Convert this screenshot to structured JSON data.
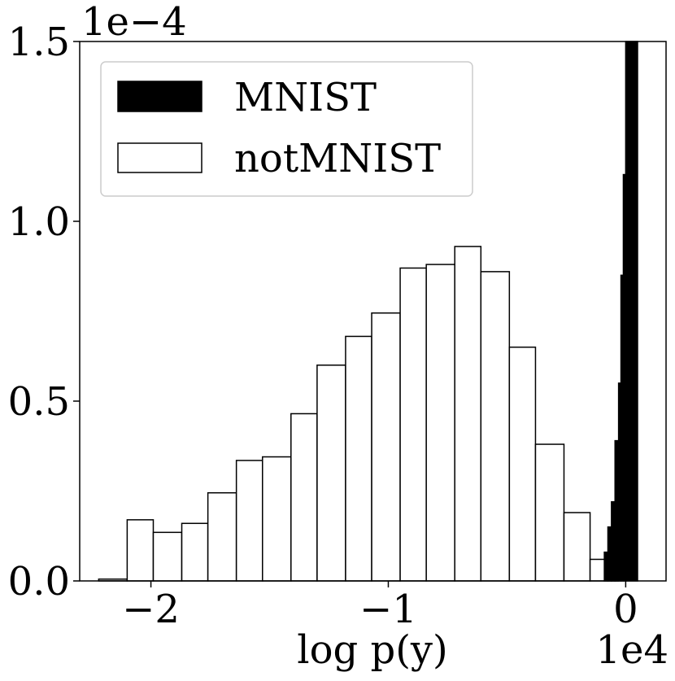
{
  "chart_data": {
    "type": "bar",
    "chart_kind": "histogram",
    "xlabel": "log p(y)",
    "ylabel": "",
    "x_scale_label": "1e4",
    "y_scale_label": "1e−4",
    "xlim": [
      -2.3,
      0.17
    ],
    "ylim": [
      0,
      1.5
    ],
    "x_ticks": [
      -2,
      -1,
      0
    ],
    "x_tick_labels": [
      "−2",
      "−1",
      "0"
    ],
    "y_ticks": [
      0.0,
      0.5,
      1.0,
      1.5
    ],
    "y_tick_labels": [
      "0.0",
      "0.5",
      "1.0",
      "1.5"
    ],
    "grid": false,
    "legend_position": "top-left",
    "colors": {
      "MNIST": "#000000",
      "notMNIST": "#ffffff",
      "edge": "#000000"
    },
    "series": [
      {
        "name": "notMNIST",
        "style": "outline",
        "bins": [
          {
            "x0": -2.22,
            "x1": -2.1,
            "y": 0.005
          },
          {
            "x0": -2.1,
            "x1": -1.99,
            "y": 0.17
          },
          {
            "x0": -1.99,
            "x1": -1.87,
            "y": 0.135
          },
          {
            "x0": -1.87,
            "x1": -1.76,
            "y": 0.16
          },
          {
            "x0": -1.76,
            "x1": -1.64,
            "y": 0.245
          },
          {
            "x0": -1.64,
            "x1": -1.53,
            "y": 0.335
          },
          {
            "x0": -1.53,
            "x1": -1.41,
            "y": 0.345
          },
          {
            "x0": -1.41,
            "x1": -1.3,
            "y": 0.465
          },
          {
            "x0": -1.3,
            "x1": -1.18,
            "y": 0.6
          },
          {
            "x0": -1.18,
            "x1": -1.07,
            "y": 0.68
          },
          {
            "x0": -1.07,
            "x1": -0.95,
            "y": 0.745
          },
          {
            "x0": -0.95,
            "x1": -0.84,
            "y": 0.87
          },
          {
            "x0": -0.84,
            "x1": -0.72,
            "y": 0.88
          },
          {
            "x0": -0.72,
            "x1": -0.61,
            "y": 0.93
          },
          {
            "x0": -0.61,
            "x1": -0.49,
            "y": 0.86
          },
          {
            "x0": -0.49,
            "x1": -0.38,
            "y": 0.65
          },
          {
            "x0": -0.38,
            "x1": -0.26,
            "y": 0.38
          },
          {
            "x0": -0.26,
            "x1": -0.15,
            "y": 0.19
          },
          {
            "x0": -0.15,
            "x1": -0.035,
            "y": 0.06
          }
        ]
      },
      {
        "name": "MNIST",
        "style": "filled",
        "bins": [
          {
            "x0": -0.09,
            "x1": -0.075,
            "y": 0.08
          },
          {
            "x0": -0.075,
            "x1": -0.06,
            "y": 0.15
          },
          {
            "x0": -0.06,
            "x1": -0.045,
            "y": 0.22
          },
          {
            "x0": -0.045,
            "x1": -0.03,
            "y": 0.39
          },
          {
            "x0": -0.03,
            "x1": -0.02,
            "y": 0.55
          },
          {
            "x0": -0.02,
            "x1": -0.01,
            "y": 0.85
          },
          {
            "x0": -0.01,
            "x1": 0.0,
            "y": 1.13
          },
          {
            "x0": 0.0,
            "x1": 0.05,
            "y": 1.5
          }
        ]
      }
    ]
  }
}
